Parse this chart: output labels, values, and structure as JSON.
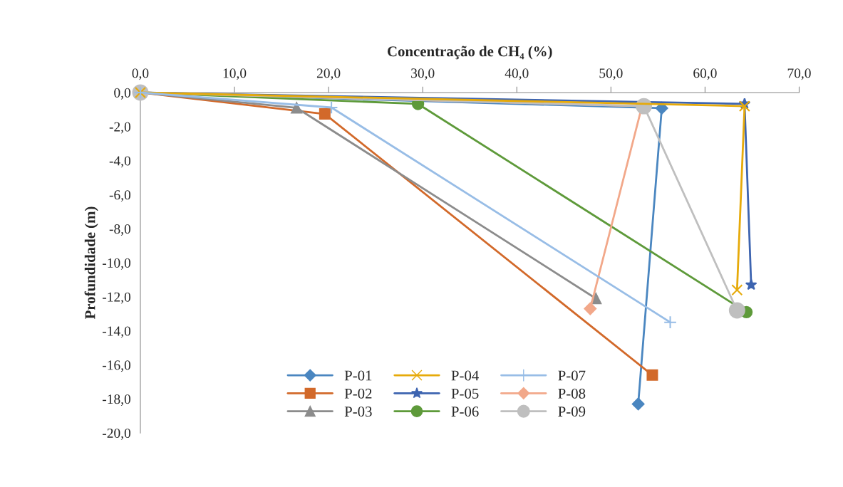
{
  "chart_data": {
    "type": "line",
    "xlabel": "Concentração de CH₄ (%)",
    "ylabel": "Profundidade (m)",
    "xlim": [
      0,
      70
    ],
    "xticks": [
      {
        "value": 0,
        "label": "0,0"
      },
      {
        "value": 10,
        "label": "10,0"
      },
      {
        "value": 20,
        "label": "20,0"
      },
      {
        "value": 30,
        "label": "30,0"
      },
      {
        "value": 40,
        "label": "40,0"
      },
      {
        "value": 50,
        "label": "50,0"
      },
      {
        "value": 60,
        "label": "60,0"
      },
      {
        "value": 70,
        "label": "70,0"
      }
    ],
    "ylim": [
      -20,
      0
    ],
    "yticks": [
      {
        "value": 0,
        "label": "0,0"
      },
      {
        "value": -2,
        "label": "-2,0"
      },
      {
        "value": -4,
        "label": "-4,0"
      },
      {
        "value": -6,
        "label": "-6,0"
      },
      {
        "value": -8,
        "label": "-8,0"
      },
      {
        "value": -10,
        "label": "-10,0"
      },
      {
        "value": -12,
        "label": "-12,0"
      },
      {
        "value": -14,
        "label": "-14,0"
      },
      {
        "value": -16,
        "label": "-16,0"
      },
      {
        "value": -18,
        "label": "-18,0"
      },
      {
        "value": -20,
        "label": "-20,0"
      }
    ],
    "grid": false,
    "legend": "bottom",
    "line_style": "solid",
    "series": [
      {
        "name": "P-01",
        "color": "#4a86c0",
        "marker": "diamond",
        "x": [
          0,
          55.4,
          52.9
        ],
        "values": [
          0,
          -0.92,
          -18.3
        ]
      },
      {
        "name": "P-02",
        "color": "#d2692a",
        "marker": "square",
        "x": [
          0,
          19.6,
          54.4
        ],
        "values": [
          0,
          -1.26,
          -16.6
        ]
      },
      {
        "name": "P-03",
        "color": "#8c8c8c",
        "marker": "triangle",
        "x": [
          0,
          16.6,
          48.4
        ],
        "values": [
          0,
          -0.9,
          -12.1
        ]
      },
      {
        "name": "P-04",
        "color": "#e6aa0a",
        "marker": "cross",
        "x": [
          0,
          64.2,
          63.4
        ],
        "values": [
          0,
          -0.8,
          -11.6
        ]
      },
      {
        "name": "P-05",
        "color": "#3d64b0",
        "marker": "star",
        "x": [
          0,
          64.2,
          64.9
        ],
        "values": [
          0,
          -0.67,
          -11.3
        ]
      },
      {
        "name": "P-06",
        "color": "#5e9a3a",
        "marker": "circle",
        "x": [
          0,
          29.5,
          64.4
        ],
        "values": [
          0,
          -0.67,
          -12.9
        ]
      },
      {
        "name": "P-07",
        "color": "#98bde6",
        "marker": "plus",
        "x": [
          0,
          20.3,
          56.3
        ],
        "values": [
          0,
          -0.88,
          -13.5
        ]
      },
      {
        "name": "P-08",
        "color": "#f2a88a",
        "marker": "diamond",
        "x": [
          0,
          53.3,
          47.8
        ],
        "values": [
          0,
          -0.8,
          -12.7
        ]
      },
      {
        "name": "P-09",
        "color": "#bfbfbf",
        "marker": "circle",
        "x": [
          0,
          53.5,
          63.4
        ],
        "values": [
          0,
          -0.8,
          -12.8
        ]
      }
    ]
  }
}
